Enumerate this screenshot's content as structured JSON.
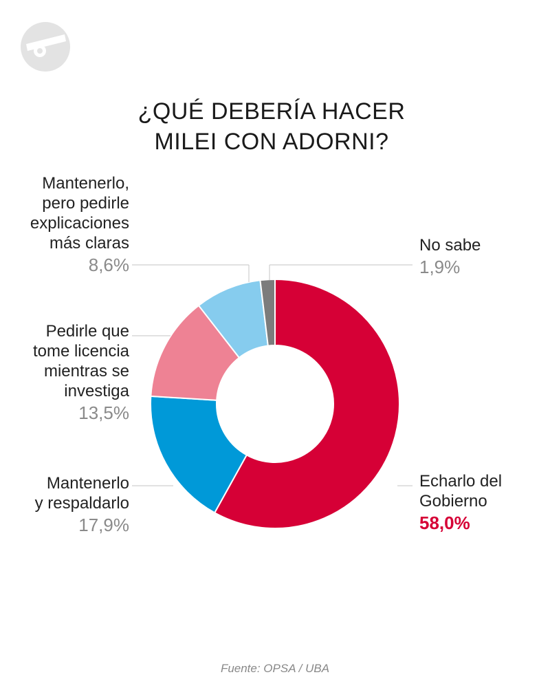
{
  "chart_data": {
    "type": "pie",
    "style": "donut",
    "title": [
      "¿QUÉ DEBERÍA HACER",
      "MILEI CON ADORNI?"
    ],
    "slices": [
      {
        "label": [
          "Echarlo del",
          "Gobierno"
        ],
        "value": 58.0,
        "display": "58,0%",
        "color": "#d60036",
        "highlight": true
      },
      {
        "label": [
          "Mantenerlo",
          "y respaldarlo"
        ],
        "value": 17.9,
        "display": "17,9%",
        "color": "#0099d8",
        "highlight": false
      },
      {
        "label": [
          "Pedirle que",
          "tome licencia",
          "mientras se",
          "investiga"
        ],
        "value": 13.5,
        "display": "13,5%",
        "color": "#ee8294",
        "highlight": false
      },
      {
        "label": [
          "Mantenerlo,",
          "pero pedirle",
          "explicaciones",
          "más claras"
        ],
        "value": 8.6,
        "display": "8,6%",
        "color": "#86ccee",
        "highlight": false
      },
      {
        "label": [
          "No sabe"
        ],
        "value": 1.9,
        "display": "1,9%",
        "color": "#7c7c7c",
        "highlight": false
      }
    ],
    "legend": "none",
    "source": "Fuente: OPSA / UBA"
  },
  "logo": {
    "icon": "brand-logo-icon",
    "color": "#e3e3e3"
  }
}
